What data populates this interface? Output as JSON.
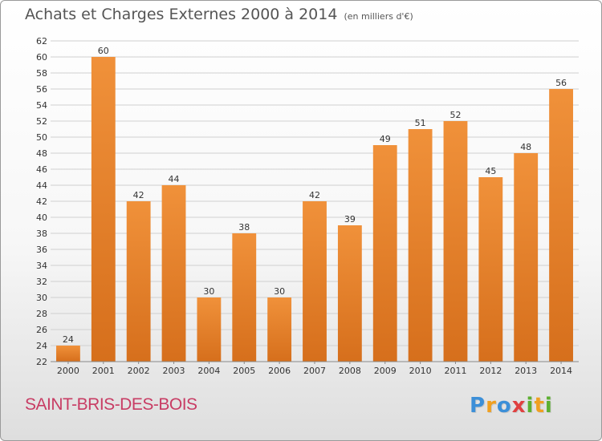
{
  "chart_data": {
    "type": "bar",
    "title": "Achats et Charges Externes 2000 à 2014",
    "unit_label": "(en milliers d'€)",
    "categories": [
      "2000",
      "2001",
      "2002",
      "2003",
      "2004",
      "2005",
      "2006",
      "2007",
      "2008",
      "2009",
      "2010",
      "2011",
      "2012",
      "2013",
      "2014"
    ],
    "values": [
      24,
      60,
      42,
      44,
      30,
      38,
      30,
      42,
      39,
      49,
      51,
      52,
      45,
      48,
      56
    ],
    "ylim": [
      22,
      62
    ],
    "yticks": [
      22,
      24,
      26,
      28,
      30,
      32,
      34,
      36,
      38,
      40,
      42,
      44,
      46,
      48,
      50,
      52,
      54,
      56,
      58,
      60,
      62
    ],
    "grid": true,
    "bar_color": "#f0913a",
    "bar_color_dark": "#d66f1c",
    "grid_color": "#d0d0d0"
  },
  "footer": {
    "commune": "SAINT-BRIS-DES-BOIS",
    "logo_letters": [
      "P",
      "r",
      "o",
      "x",
      "i",
      "t",
      "i"
    ],
    "logo_colors": [
      "#3c8fd8",
      "#f0a020",
      "#3c8fd8",
      "#e04040",
      "#5cb030",
      "#f0a020",
      "#5cb030"
    ]
  }
}
